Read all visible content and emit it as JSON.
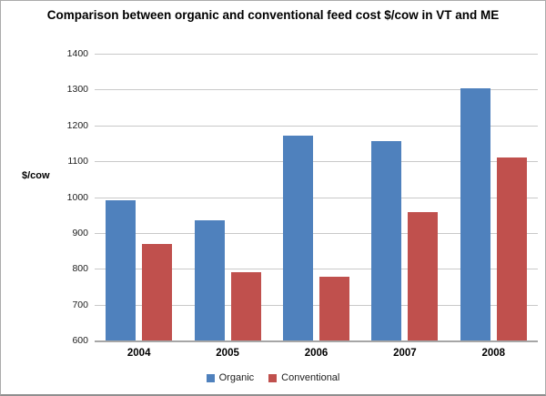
{
  "chart_data": {
    "type": "bar",
    "title": "Comparison between organic and conventional feed cost $/cow in VT and ME",
    "xlabel": "",
    "ylabel": "$/cow",
    "categories": [
      "2004",
      "2005",
      "2006",
      "2007",
      "2008"
    ],
    "series": [
      {
        "name": "Organic",
        "color": "#4F81BD",
        "values": [
          992,
          936,
          1172,
          1156,
          1304
        ]
      },
      {
        "name": "Conventional",
        "color": "#C0504D",
        "values": [
          870,
          790,
          778,
          958,
          1110
        ]
      }
    ],
    "ylim": [
      600,
      1400
    ],
    "ytick_step": 100,
    "yticks": [
      "600",
      "700",
      "800",
      "900",
      "1000",
      "1100",
      "1200",
      "1300",
      "1400"
    ],
    "grid": "horizontal",
    "legend_position": "bottom",
    "colors": {
      "gridline": "#C9C9C9",
      "axis": "#A6A6A6",
      "text": "#000000",
      "border": "#ABABAB",
      "background": "#FFFFFF"
    }
  }
}
